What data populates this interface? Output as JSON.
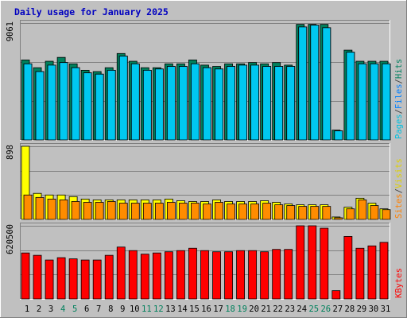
{
  "chart_data": {
    "type": "bar",
    "title": "Daily usage for January 2025",
    "categories": [
      "1",
      "2",
      "3",
      "4",
      "5",
      "6",
      "7",
      "8",
      "9",
      "10",
      "11",
      "12",
      "13",
      "14",
      "15",
      "16",
      "17",
      "18",
      "19",
      "20",
      "21",
      "22",
      "23",
      "24",
      "25",
      "26",
      "27",
      "28",
      "29",
      "30",
      "31"
    ],
    "weekend_days": [
      "4",
      "5",
      "11",
      "12",
      "18",
      "19",
      "25",
      "26"
    ],
    "panels": [
      {
        "id": "hits-files-pages",
        "ymax": 9061,
        "ymax_label": "9061",
        "side_label": [
          {
            "text": "Pages",
            "color": "#00c0e0"
          },
          {
            "text": "/",
            "color": "#404040"
          },
          {
            "text": "Files",
            "color": "#0080ff"
          },
          {
            "text": "/",
            "color": "#404040"
          },
          {
            "text": "Hits",
            "color": "#008060"
          }
        ],
        "series": [
          {
            "name": "Hits",
            "color": "#00805c",
            "values": [
              6200,
              5600,
              6100,
              6400,
              5900,
              5400,
              5300,
              5600,
              6700,
              6100,
              5600,
              5600,
              5900,
              5900,
              6200,
              5800,
              5700,
              5900,
              5900,
              6000,
              5900,
              6000,
              5800,
              8960,
              8960,
              8960,
              760,
              6960,
              6100,
              6100,
              6100
            ]
          },
          {
            "name": "Files",
            "color": "#0000ff",
            "values": [
              5900,
              5300,
              5800,
              6000,
              5600,
              5200,
              5100,
              5400,
              6500,
              5900,
              5400,
              5500,
              5700,
              5700,
              5900,
              5600,
              5500,
              5700,
              5800,
              5800,
              5700,
              5700,
              5700,
              8760,
              8900,
              8700,
              700,
              6800,
              5900,
              5900,
              5900
            ]
          },
          {
            "name": "Pages",
            "color": "#00c8f0",
            "values": [
              5900,
              5300,
              5800,
              6000,
              5600,
              5200,
              5100,
              5400,
              6500,
              5900,
              5400,
              5500,
              5700,
              5700,
              5900,
              5600,
              5500,
              5700,
              5800,
              5800,
              5700,
              5700,
              5700,
              8760,
              8900,
              8700,
              700,
              6800,
              5900,
              5900,
              5900
            ]
          }
        ]
      },
      {
        "id": "visits-sites",
        "ymax": 898,
        "ymax_label": "898",
        "side_label": [
          {
            "text": "Sites",
            "color": "#ff8000"
          },
          {
            "text": "/",
            "color": "#404040"
          },
          {
            "text": "Visits",
            "color": "#e0d000"
          }
        ],
        "series": [
          {
            "name": "Visits",
            "color": "#ffff00",
            "values": [
              898,
              320,
              300,
              300,
              280,
              250,
              240,
              240,
              240,
              240,
              240,
              240,
              250,
              230,
              220,
              220,
              240,
              220,
              220,
              220,
              230,
              210,
              190,
              180,
              180,
              180,
              30,
              150,
              260,
              200,
              130
            ]
          },
          {
            "name": "Sites",
            "color": "#ff8c00",
            "values": [
              300,
              270,
              250,
              240,
              220,
              210,
              210,
              220,
              200,
              200,
              200,
              200,
              210,
              200,
              200,
              190,
              210,
              190,
              190,
              190,
              200,
              180,
              170,
              160,
              160,
              160,
              20,
              130,
              240,
              170,
              120
            ]
          }
        ]
      },
      {
        "id": "kbytes",
        "ymax": 620500,
        "ymax_label": "620500",
        "side_label": [
          {
            "text": "KBytes",
            "color": "#ff0000"
          }
        ],
        "series": [
          {
            "name": "KBytes",
            "color": "#ff0000",
            "values": [
              390000,
              370000,
              330000,
              350000,
              340000,
              330000,
              330000,
              370000,
              440000,
              410000,
              380000,
              390000,
              400000,
              410000,
              430000,
              410000,
              400000,
              400000,
              410000,
              410000,
              400000,
              420000,
              420000,
              620500,
              620500,
              600000,
              70000,
              530000,
              430000,
              450000,
              480000
            ]
          }
        ]
      }
    ]
  }
}
